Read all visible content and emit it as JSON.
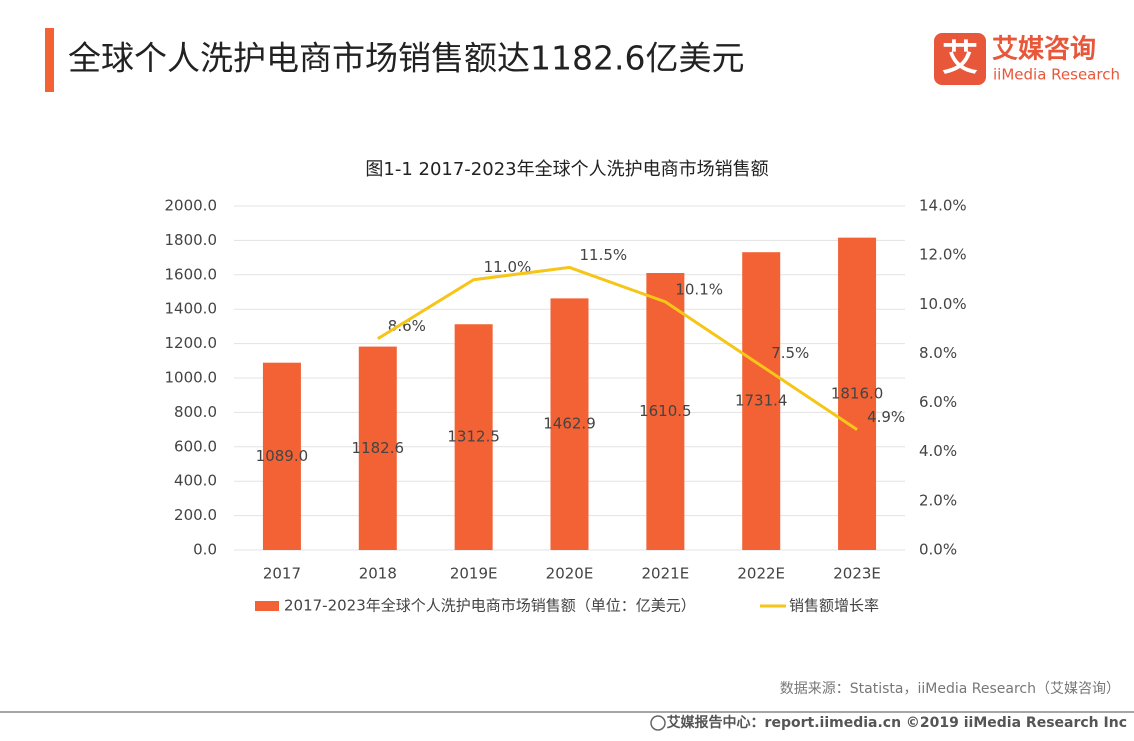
{
  "header": {
    "title": "全球个人洗护电商市场销售额达1182.6亿美元",
    "logo_mark": "艾",
    "logo_cn": "艾媒咨询",
    "logo_en": "iiMedia Research"
  },
  "chart_data": {
    "type": "bar",
    "title": "图1-1 2017-2023年全球个人洗护电商市场销售额",
    "categories": [
      "2017",
      "2018",
      "2019E",
      "2020E",
      "2021E",
      "2022E",
      "2023E"
    ],
    "series": [
      {
        "name": "2017-2023年全球个人洗护电商市场销售额（单位：亿美元）",
        "type": "bar",
        "color": "#f26234",
        "values": [
          1089.0,
          1182.6,
          1312.5,
          1462.9,
          1610.5,
          1731.4,
          1816.0
        ],
        "value_labels": [
          "1089.0",
          "1182.6",
          "1312.5",
          "1462.9",
          "1610.5",
          "1731.4",
          "1816.0"
        ]
      },
      {
        "name": "销售额增长率",
        "type": "line",
        "axis": "y2",
        "color": "#f5c518",
        "values": [
          null,
          8.6,
          11.0,
          11.5,
          10.1,
          7.5,
          4.9
        ],
        "value_labels": [
          null,
          "8.6%",
          "11.0%",
          "11.5%",
          "10.1%",
          "7.5%",
          "4.9%"
        ]
      }
    ],
    "ylim": [
      0,
      2000
    ],
    "yticks": [
      {
        "value": 0,
        "label": "0.0"
      },
      {
        "value": 200,
        "label": "200.0"
      },
      {
        "value": 400,
        "label": "400.0"
      },
      {
        "value": 600,
        "label": "600.0"
      },
      {
        "value": 800,
        "label": "800.0"
      },
      {
        "value": 1000,
        "label": "1000.0"
      },
      {
        "value": 1200,
        "label": "1200.0"
      },
      {
        "value": 1400,
        "label": "1400.0"
      },
      {
        "value": 1600,
        "label": "1600.0"
      },
      {
        "value": 1800,
        "label": "1800.0"
      },
      {
        "value": 2000,
        "label": "2000.0"
      }
    ],
    "y2lim": [
      0,
      14
    ],
    "y2ticks": [
      {
        "value": 0,
        "label": "0.0%"
      },
      {
        "value": 2,
        "label": "2.0%"
      },
      {
        "value": 4,
        "label": "4.0%"
      },
      {
        "value": 6,
        "label": "6.0%"
      },
      {
        "value": 8,
        "label": "8.0%"
      },
      {
        "value": 10,
        "label": "10.0%"
      },
      {
        "value": 12,
        "label": "12.0%"
      },
      {
        "value": 14,
        "label": "14.0%"
      }
    ],
    "grid": true,
    "legend": "bottom"
  },
  "source": "数据来源：Statista，iiMedia Research（艾媒咨询）",
  "footer": "艾媒报告中心：report.iimedia.cn ©2019  iiMedia Research Inc"
}
